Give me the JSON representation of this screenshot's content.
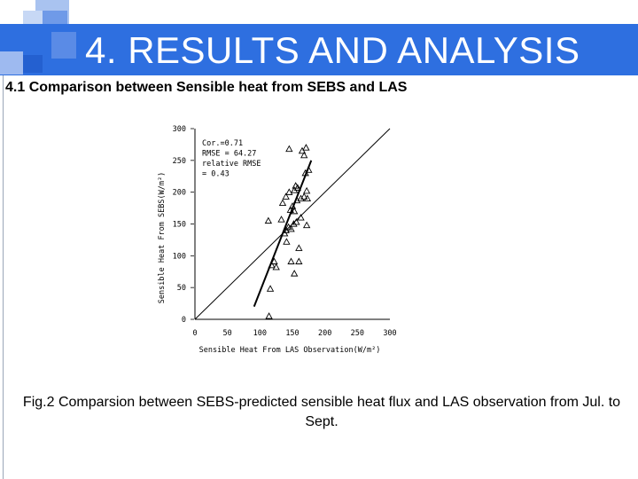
{
  "slide": {
    "title": "4. RESULTS AND ANALYSIS",
    "subtitle": "4.1  Comparison between Sensible heat from SEBS and LAS",
    "caption": "Fig.2 Comparsion between SEBS-predicted sensible heat flux and LAS observation from Jul. to Sept.",
    "colors": {
      "header": "#2e6fe0",
      "deco_light": "#a9c3f0",
      "deco_mid": "#6f9ae8",
      "deco_dark": "#2e6fe0"
    }
  },
  "chart_data": {
    "type": "scatter",
    "xlabel": "Sensible Heat From LAS Observation(W/m²)",
    "ylabel": "Sensible Heat From SEBS(W/m²)",
    "xlim": [
      0,
      300
    ],
    "ylim": [
      0,
      300
    ],
    "xticks": [
      "0",
      "50",
      "100",
      "150",
      "200",
      "250",
      "300"
    ],
    "yticks": [
      "0",
      "50",
      "100",
      "150",
      "200",
      "250",
      "300"
    ],
    "stats": [
      "Cor.=0.71",
      "RMSE = 64.27",
      "relative RMSE",
      "= 0.43"
    ],
    "marker": "triangle",
    "one_to_one_line": true,
    "fit_line": {
      "x": [
        91,
        179
      ],
      "y": [
        20,
        250
      ]
    },
    "points": [
      {
        "x": 145,
        "y": 268
      },
      {
        "x": 171,
        "y": 270
      },
      {
        "x": 165,
        "y": 265
      },
      {
        "x": 168,
        "y": 258
      },
      {
        "x": 175,
        "y": 235
      },
      {
        "x": 170,
        "y": 230
      },
      {
        "x": 155,
        "y": 210
      },
      {
        "x": 158,
        "y": 207
      },
      {
        "x": 153,
        "y": 203
      },
      {
        "x": 145,
        "y": 200
      },
      {
        "x": 172,
        "y": 202
      },
      {
        "x": 168,
        "y": 193
      },
      {
        "x": 163,
        "y": 190
      },
      {
        "x": 173,
        "y": 190
      },
      {
        "x": 157,
        "y": 187
      },
      {
        "x": 140,
        "y": 193
      },
      {
        "x": 135,
        "y": 183
      },
      {
        "x": 150,
        "y": 178
      },
      {
        "x": 153,
        "y": 170
      },
      {
        "x": 147,
        "y": 172
      },
      {
        "x": 163,
        "y": 160
      },
      {
        "x": 113,
        "y": 155
      },
      {
        "x": 133,
        "y": 157
      },
      {
        "x": 156,
        "y": 153
      },
      {
        "x": 152,
        "y": 150
      },
      {
        "x": 172,
        "y": 148
      },
      {
        "x": 144,
        "y": 145
      },
      {
        "x": 140,
        "y": 140
      },
      {
        "x": 148,
        "y": 142
      },
      {
        "x": 138,
        "y": 135
      },
      {
        "x": 141,
        "y": 122
      },
      {
        "x": 160,
        "y": 112
      },
      {
        "x": 122,
        "y": 91
      },
      {
        "x": 118,
        "y": 85
      },
      {
        "x": 125,
        "y": 82
      },
      {
        "x": 148,
        "y": 91
      },
      {
        "x": 160,
        "y": 91
      },
      {
        "x": 153,
        "y": 72
      },
      {
        "x": 116,
        "y": 48
      },
      {
        "x": 114,
        "y": 5
      }
    ]
  }
}
